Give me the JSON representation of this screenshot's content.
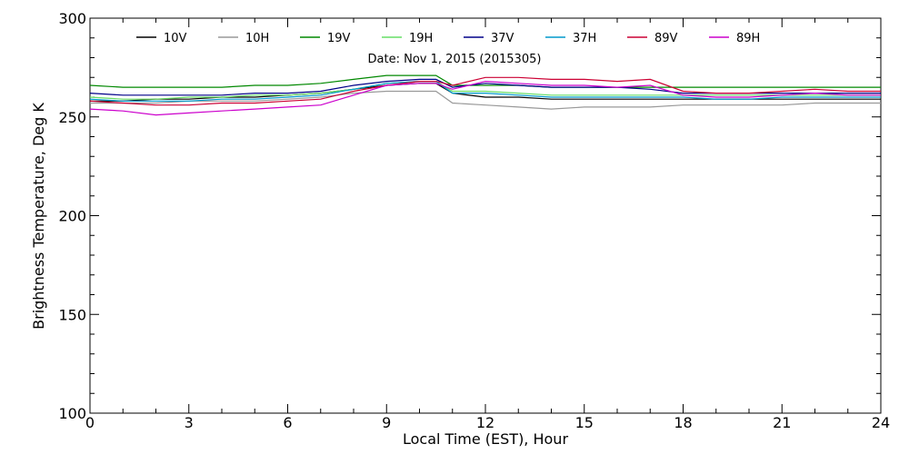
{
  "chart_data": {
    "type": "line",
    "title": "",
    "subtitle": "Date: Nov  1, 2015 (2015305)",
    "xlabel": "Local Time (EST), Hour",
    "ylabel": "Brightness Temperature, Deg  K",
    "xlim": [
      0,
      24
    ],
    "ylim": [
      100,
      300
    ],
    "xticks": [
      "0",
      "3",
      "6",
      "9",
      "12",
      "15",
      "18",
      "21",
      "24"
    ],
    "yticks": [
      "100",
      "150",
      "200",
      "250",
      "300"
    ],
    "grid": false,
    "legend_position": "top",
    "series": [
      {
        "name": "10V",
        "color": "#000000",
        "x": [
          0,
          1,
          2,
          3,
          4,
          5,
          6,
          7,
          8,
          9,
          10,
          10.5,
          11,
          12,
          13,
          14,
          15,
          16,
          17,
          18,
          19,
          20,
          21,
          22,
          23,
          24
        ],
        "y": [
          258,
          258,
          259,
          259,
          260,
          260,
          261,
          262,
          264,
          266,
          267,
          267,
          262,
          260,
          260,
          259,
          259,
          259,
          259,
          259,
          259,
          259,
          259,
          259,
          259,
          259
        ]
      },
      {
        "name": "10H",
        "color": "#999999",
        "x": [
          0,
          1,
          2,
          3,
          4,
          5,
          6,
          7,
          8,
          9,
          10,
          10.5,
          11,
          12,
          13,
          14,
          15,
          16,
          17,
          18,
          19,
          20,
          21,
          22,
          23,
          24
        ],
        "y": [
          257,
          257,
          257,
          258,
          258,
          258,
          259,
          260,
          262,
          263,
          263,
          263,
          257,
          256,
          255,
          254,
          255,
          255,
          255,
          256,
          256,
          256,
          256,
          257,
          257,
          257
        ]
      },
      {
        "name": "19V",
        "color": "#008800",
        "x": [
          0,
          1,
          2,
          3,
          4,
          5,
          6,
          7,
          8,
          9,
          10,
          10.5,
          11,
          12,
          13,
          14,
          15,
          16,
          17,
          18,
          19,
          20,
          21,
          22,
          23,
          24
        ],
        "y": [
          266,
          265,
          265,
          265,
          265,
          266,
          266,
          267,
          269,
          271,
          271,
          271,
          266,
          266,
          266,
          265,
          265,
          265,
          265,
          265,
          265,
          265,
          265,
          265,
          265,
          265
        ]
      },
      {
        "name": "19H",
        "color": "#66dd66",
        "x": [
          0,
          1,
          2,
          3,
          4,
          5,
          6,
          7,
          8,
          9,
          10,
          10.5,
          11,
          12,
          13,
          14,
          15,
          16,
          17,
          18,
          19,
          20,
          21,
          22,
          23,
          24
        ],
        "y": [
          260,
          259,
          259,
          260,
          260,
          261,
          261,
          262,
          264,
          267,
          268,
          268,
          263,
          263,
          262,
          261,
          261,
          261,
          261,
          261,
          261,
          261,
          261,
          261,
          261,
          261
        ]
      },
      {
        "name": "37V",
        "color": "#000088",
        "x": [
          0,
          1,
          2,
          3,
          4,
          5,
          6,
          7,
          8,
          9,
          10,
          10.5,
          11,
          12,
          13,
          14,
          15,
          16,
          17,
          18,
          19,
          20,
          21,
          22,
          23,
          24
        ],
        "y": [
          262,
          261,
          261,
          261,
          261,
          262,
          262,
          263,
          266,
          268,
          269,
          269,
          265,
          267,
          266,
          265,
          265,
          265,
          264,
          262,
          262,
          262,
          262,
          262,
          262,
          262
        ]
      },
      {
        "name": "37H",
        "color": "#0099cc",
        "x": [
          0,
          1,
          2,
          3,
          4,
          5,
          6,
          7,
          8,
          9,
          10,
          10.5,
          11,
          12,
          13,
          14,
          15,
          16,
          17,
          18,
          19,
          20,
          21,
          22,
          23,
          24
        ],
        "y": [
          259,
          258,
          258,
          258,
          259,
          259,
          260,
          261,
          264,
          267,
          268,
          268,
          262,
          262,
          261,
          260,
          260,
          260,
          260,
          260,
          259,
          259,
          260,
          260,
          260,
          260
        ]
      },
      {
        "name": "89V",
        "color": "#cc0033",
        "x": [
          0,
          1,
          2,
          3,
          4,
          5,
          6,
          7,
          8,
          9,
          10,
          10.5,
          11,
          12,
          13,
          14,
          15,
          16,
          17,
          18,
          19,
          20,
          21,
          22,
          23,
          24
        ],
        "y": [
          258,
          257,
          256,
          256,
          257,
          257,
          258,
          259,
          263,
          266,
          268,
          268,
          266,
          270,
          270,
          269,
          269,
          268,
          269,
          263,
          262,
          262,
          263,
          264,
          263,
          263
        ]
      },
      {
        "name": "89H",
        "color": "#cc00cc",
        "x": [
          0,
          1,
          2,
          3,
          4,
          5,
          6,
          7,
          8,
          9,
          10,
          10.5,
          11,
          12,
          13,
          14,
          15,
          16,
          17,
          18,
          19,
          20,
          21,
          22,
          23,
          24
        ],
        "y": [
          254,
          253,
          251,
          252,
          253,
          254,
          255,
          256,
          261,
          266,
          267,
          267,
          264,
          268,
          267,
          266,
          266,
          265,
          266,
          261,
          260,
          260,
          261,
          262,
          261,
          261
        ]
      }
    ]
  }
}
